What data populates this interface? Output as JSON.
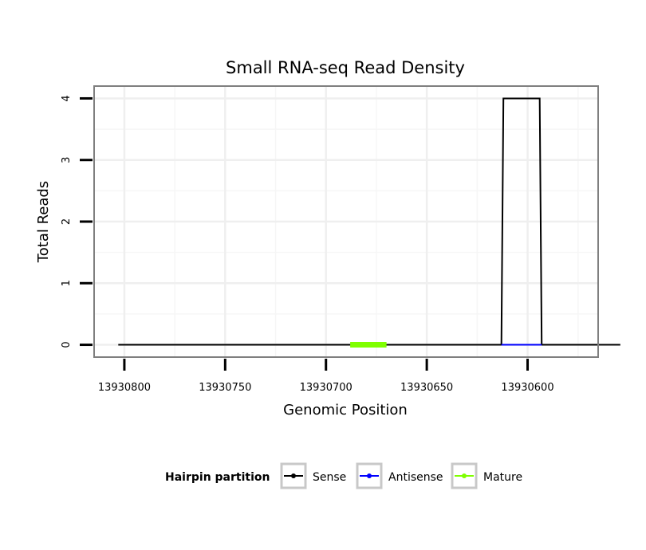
{
  "chart_data": {
    "type": "line",
    "title": "Small RNA-seq Read Density",
    "xlabel": "Genomic Position",
    "ylabel": "Total Reads",
    "x_reversed": true,
    "xlim": [
      13930815,
      13930565
    ],
    "ylim": [
      -0.2,
      4.2
    ],
    "x_ticks": [
      13930800,
      13930750,
      13930700,
      13930650,
      13930600
    ],
    "x_tick_labels": [
      "13930800",
      "13930750",
      "13930700",
      "13930650",
      "13930600"
    ],
    "y_ticks": [
      0,
      1,
      2,
      3,
      4
    ],
    "y_tick_labels": [
      "0",
      "1",
      "2",
      "3",
      "4"
    ],
    "grid": true,
    "series": [
      {
        "name": "Sense",
        "color": "#000000",
        "x": [
          13930803,
          13930613,
          13930612,
          13930594,
          13930593,
          13930554
        ],
        "values": [
          0,
          0,
          4,
          4,
          0,
          0
        ]
      },
      {
        "name": "Antisense",
        "color": "#0000ff",
        "x": [
          13930613,
          13930593
        ],
        "values": [
          0,
          0
        ]
      },
      {
        "name": "Mature",
        "color": "#7fff00",
        "x": [
          13930688,
          13930670
        ],
        "values": [
          0,
          0
        ]
      }
    ],
    "legend": {
      "title": "Hairpin partition",
      "position": "bottom",
      "items": [
        "Sense",
        "Antisense",
        "Mature"
      ]
    }
  }
}
